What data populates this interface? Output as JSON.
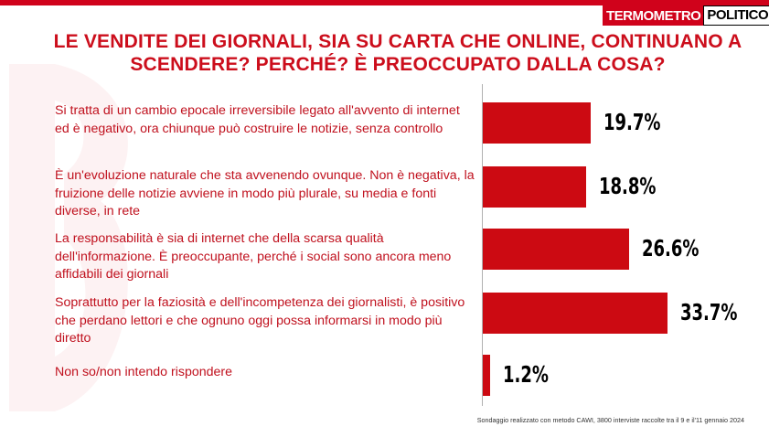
{
  "brand": {
    "part1": "TERMOMETRO",
    "part2": "POLITICO"
  },
  "title": "LE VENDITE DEI GIORNALI, SIA SU CARTA CHE ONLINE, CONTINUANO A SCENDERE? PERCHÉ? È PREOCCUPATO DALLA COSA?",
  "source": "Sondaggio realizzato con metodo CAWI, 3800 interviste raccolte tra il 9 e il'11 gennaio 2024",
  "colors": {
    "accent": "#cc0e1c",
    "bar": "#cc0a12"
  },
  "chart_data": {
    "type": "bar",
    "orientation": "horizontal",
    "title": "LE VENDITE DEI GIORNALI, SIA SU CARTA CHE ONLINE, CONTINUANO A SCENDERE? PERCHÉ? È PREOCCUPATO DALLA COSA?",
    "categories": [
      "Si tratta di un cambio epocale irreversibile legato all'avvento di internet ed è negativo, ora chiunque può costruire le notizie, senza controllo",
      "È un'evoluzione naturale che sta avvenendo ovunque. Non è negativa, la fruizione delle notizie avviene in modo più plurale, su media e fonti diverse, in rete",
      "La responsabilità  è sia di internet che della scarsa qualità dell'informazione. È preoccupante, perché i social sono ancora meno affidabili dei giornali",
      "Soprattutto per la faziosità  e dell'incompetenza dei giornalisti, è positivo che perdano lettori e che ognuno oggi possa informarsi in modo più diretto",
      "Non so/non intendo rispondere"
    ],
    "values": [
      19.7,
      18.8,
      26.6,
      33.7,
      1.2
    ],
    "value_labels": [
      "19.7%",
      "18.8%",
      "26.6%",
      "33.7%",
      "1.2%"
    ],
    "unit": "%",
    "grid": false,
    "legend": "none"
  }
}
